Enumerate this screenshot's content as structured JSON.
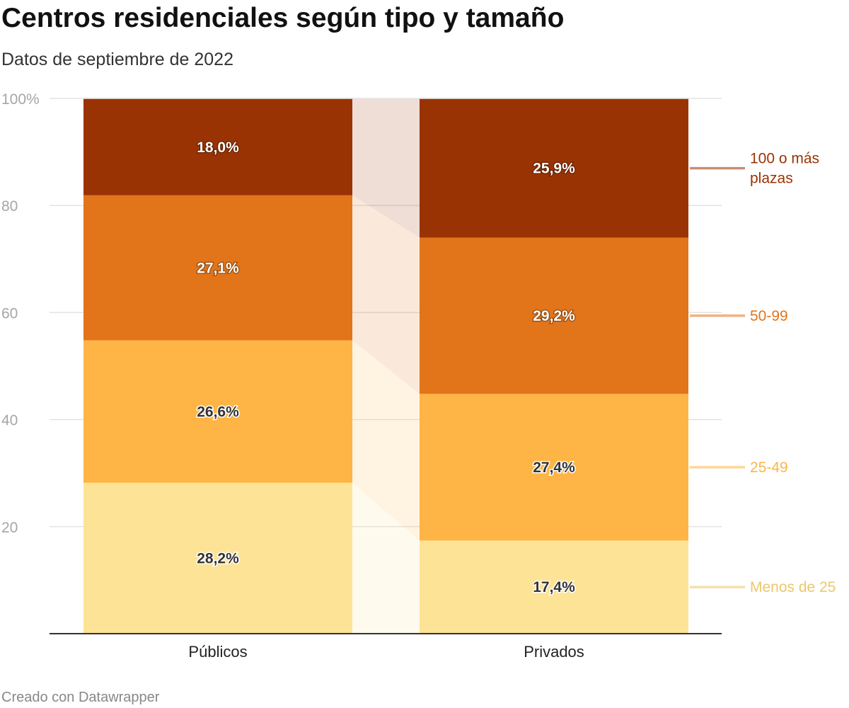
{
  "title": "Centros residenciales según tipo y tamaño",
  "subtitle": "Datos de septiembre de 2022",
  "credit": "Creado con Datawrapper",
  "chart_data": {
    "type": "bar",
    "stacked": true,
    "normalized_percent": true,
    "categories": [
      "Públicos",
      "Privados"
    ],
    "series": [
      {
        "name": "Menos de 25",
        "values": [
          28.2,
          17.4
        ],
        "labels": [
          "28,2%",
          "17,4%"
        ],
        "color": "#fde395",
        "label_color": "#ecc86b",
        "text_color": "#333333"
      },
      {
        "name": "25-49",
        "values": [
          26.6,
          27.4
        ],
        "labels": [
          "26,6%",
          "27,4%"
        ],
        "color": "#feb545",
        "label_color": "#feb545",
        "text_color": "#333333"
      },
      {
        "name": "50-99",
        "values": [
          27.1,
          29.2
        ],
        "labels": [
          "27,1%",
          "29,2%"
        ],
        "color": "#e27419",
        "label_color": "#e27419",
        "text_color": "#ffffff"
      },
      {
        "name": "100 o más plazas",
        "values": [
          18.0,
          25.9
        ],
        "labels": [
          "18,0%",
          "25,9%"
        ],
        "color": "#9a3303",
        "label_color": "#9a3303",
        "text_color": "#ffffff"
      }
    ],
    "y_ticks": [
      {
        "value": 20,
        "label": "20"
      },
      {
        "value": 40,
        "label": "40"
      },
      {
        "value": 60,
        "label": "60"
      },
      {
        "value": 80,
        "label": "80"
      },
      {
        "value": 100,
        "label": "100%"
      }
    ],
    "ylim": [
      0,
      100
    ],
    "grid": true,
    "legend": "right, inline labels"
  }
}
